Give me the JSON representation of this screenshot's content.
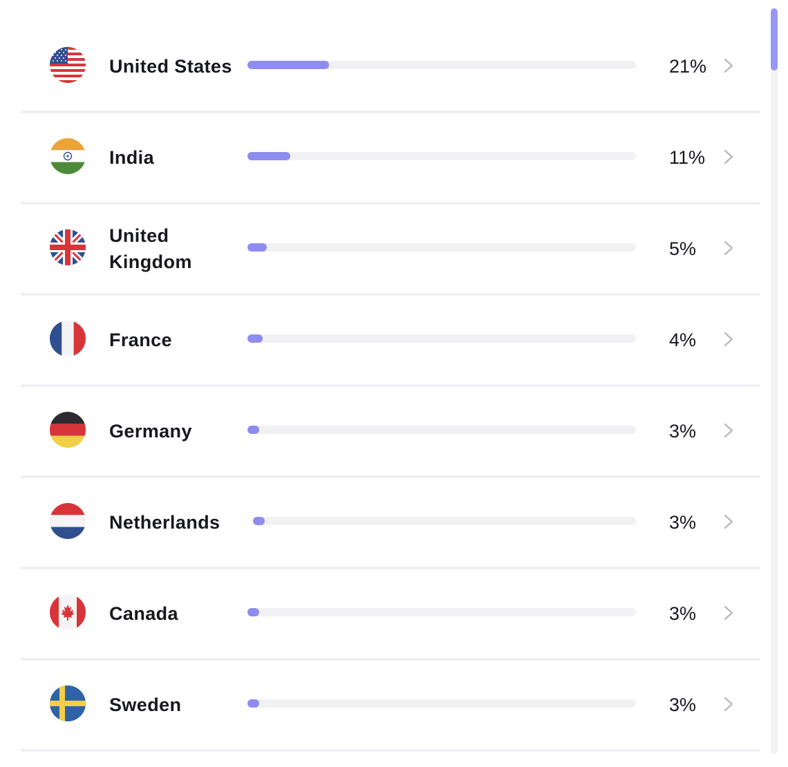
{
  "colors": {
    "accent": "#8f8cf0",
    "track": "#f1f1f4",
    "divider": "#f0f0f3",
    "text": "#17181c",
    "chevron": "#b8b8bf"
  },
  "countries": [
    {
      "name": "United States",
      "percent_label": "21%",
      "share": 0.21,
      "flag_icon": "us-flag-icon"
    },
    {
      "name": "India",
      "percent_label": "11%",
      "share": 0.11,
      "flag_icon": "india-flag-icon"
    },
    {
      "name": "United Kingdom",
      "percent_label": "5%",
      "share": 0.05,
      "flag_icon": "uk-flag-icon"
    },
    {
      "name": "France",
      "percent_label": "4%",
      "share": 0.04,
      "flag_icon": "france-flag-icon"
    },
    {
      "name": "Germany",
      "percent_label": "3%",
      "share": 0.03,
      "flag_icon": "germany-flag-icon"
    },
    {
      "name": "Netherlands",
      "percent_label": "3%",
      "share": 0.03,
      "flag_icon": "netherlands-flag-icon"
    },
    {
      "name": "Canada",
      "percent_label": "3%",
      "share": 0.03,
      "flag_icon": "canada-flag-icon"
    },
    {
      "name": "Sweden",
      "percent_label": "3%",
      "share": 0.03,
      "flag_icon": "sweden-flag-icon"
    }
  ],
  "scrollbar": {
    "position": 0
  }
}
